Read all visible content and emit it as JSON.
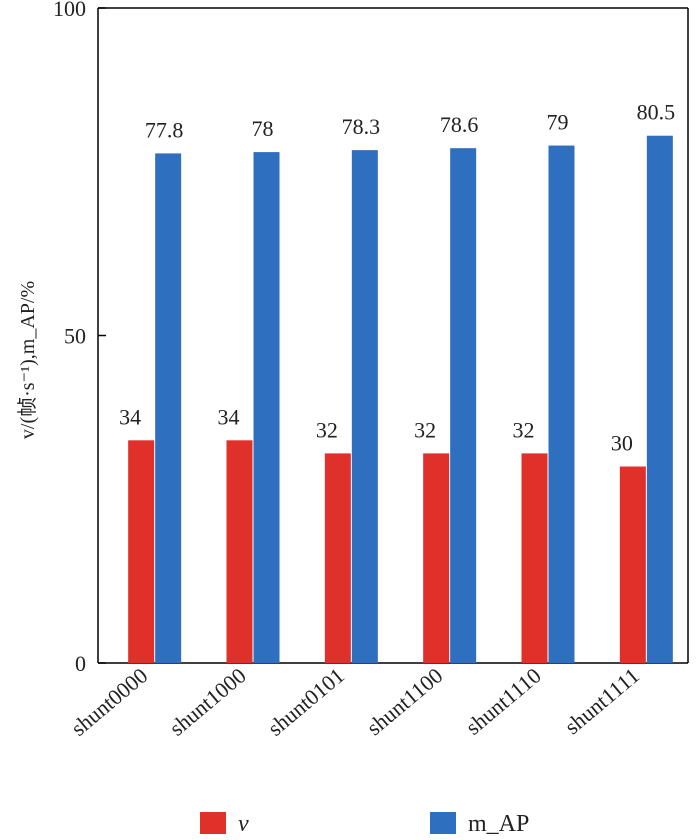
{
  "chart_data": {
    "type": "bar",
    "title": "",
    "xlabel": "",
    "ylabel": "v/(帧·s⁻¹),m_AP/%",
    "ylim": [
      0,
      100
    ],
    "yticks": [
      "0",
      "50",
      "100"
    ],
    "categories": [
      "shunt0000",
      "shunt1000",
      "shunt0101",
      "shunt1100",
      "shunt1110",
      "shunt1111"
    ],
    "series": [
      {
        "name": "v",
        "color": "#e0302a",
        "values": [
          34,
          34,
          32,
          32,
          32,
          30
        ],
        "labels": [
          "34",
          "34",
          "32",
          "32",
          "32",
          "30"
        ]
      },
      {
        "name": "m_AP",
        "color": "#2f6fbf",
        "values": [
          77.8,
          78,
          78.3,
          78.6,
          79,
          80.5
        ],
        "labels": [
          "77.8",
          "78",
          "78.3",
          "78.6",
          "79",
          "80.5"
        ]
      }
    ],
    "legend_position": "bottom"
  }
}
